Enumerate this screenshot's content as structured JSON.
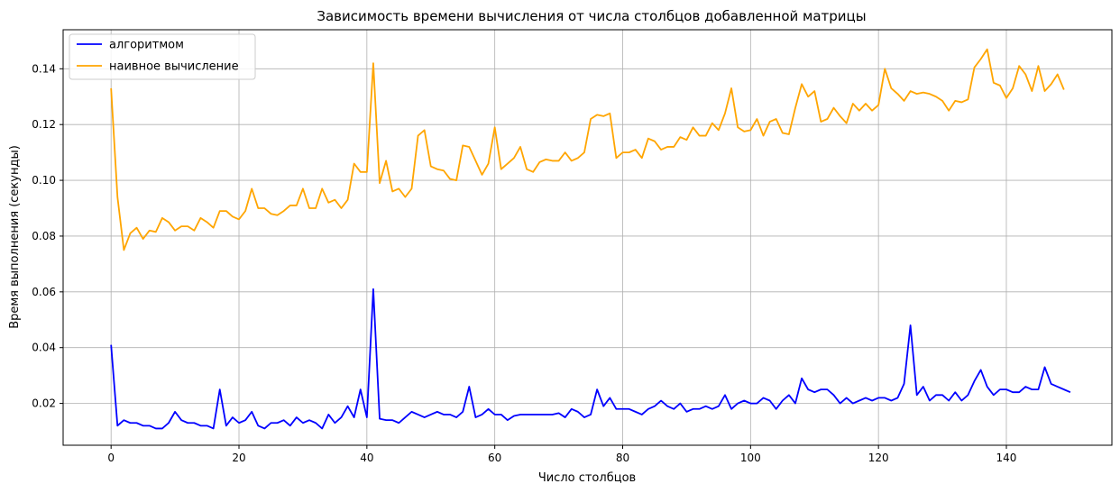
{
  "chart_data": {
    "type": "line",
    "title": "Зависимость времени вычисления от числа столбцов добавленной матрицы",
    "xlabel": "Число столбцов",
    "ylabel": "Время выполнения (секунды)",
    "xlim": [
      -7.5,
      156.5
    ],
    "ylim": [
      0.005,
      0.154
    ],
    "xticks": [
      0,
      20,
      40,
      60,
      80,
      100,
      120,
      140
    ],
    "yticks": [
      0.02,
      0.04,
      0.06,
      0.08,
      0.1,
      0.12,
      0.14
    ],
    "ytick_labels": [
      "0.02",
      "0.04",
      "0.06",
      "0.08",
      "0.10",
      "0.12",
      "0.14"
    ],
    "grid": true,
    "legend_position": "top-left",
    "series": [
      {
        "name": "алгоритмом",
        "color": "#0000ff",
        "values": [
          0.041,
          0.012,
          0.014,
          0.013,
          0.013,
          0.012,
          0.012,
          0.011,
          0.011,
          0.013,
          0.017,
          0.014,
          0.013,
          0.013,
          0.012,
          0.012,
          0.011,
          0.025,
          0.012,
          0.015,
          0.013,
          0.014,
          0.017,
          0.012,
          0.011,
          0.013,
          0.013,
          0.014,
          0.012,
          0.015,
          0.013,
          0.014,
          0.013,
          0.011,
          0.016,
          0.013,
          0.015,
          0.019,
          0.015,
          0.025,
          0.015,
          0.061,
          0.0145,
          0.014,
          0.014,
          0.013,
          0.015,
          0.017,
          0.016,
          0.015,
          0.016,
          0.017,
          0.016,
          0.016,
          0.015,
          0.017,
          0.026,
          0.015,
          0.016,
          0.018,
          0.016,
          0.016,
          0.014,
          0.0155,
          0.016,
          0.016,
          0.016,
          0.016,
          0.016,
          0.016,
          0.0165,
          0.015,
          0.018,
          0.017,
          0.015,
          0.016,
          0.025,
          0.019,
          0.022,
          0.018,
          0.018,
          0.018,
          0.017,
          0.016,
          0.018,
          0.019,
          0.021,
          0.019,
          0.018,
          0.02,
          0.017,
          0.018,
          0.018,
          0.019,
          0.018,
          0.019,
          0.023,
          0.018,
          0.02,
          0.021,
          0.02,
          0.02,
          0.022,
          0.021,
          0.018,
          0.021,
          0.023,
          0.02,
          0.029,
          0.025,
          0.024,
          0.025,
          0.025,
          0.023,
          0.02,
          0.022,
          0.02,
          0.021,
          0.022,
          0.021,
          0.022,
          0.022,
          0.021,
          0.022,
          0.027,
          0.048,
          0.023,
          0.026,
          0.021,
          0.023,
          0.023,
          0.021,
          0.024,
          0.021,
          0.023,
          0.028,
          0.032,
          0.026,
          0.023,
          0.025,
          0.025,
          0.024,
          0.024,
          0.026,
          0.025,
          0.025,
          0.033,
          0.027,
          0.026,
          0.025,
          0.024
        ]
      },
      {
        "name": "наивное вычисление",
        "color": "#ffa500",
        "values": [
          0.133,
          0.094,
          0.075,
          0.081,
          0.083,
          0.079,
          0.082,
          0.0815,
          0.0865,
          0.085,
          0.082,
          0.0835,
          0.0835,
          0.082,
          0.0865,
          0.085,
          0.083,
          0.089,
          0.089,
          0.087,
          0.086,
          0.089,
          0.097,
          0.09,
          0.09,
          0.088,
          0.0875,
          0.089,
          0.091,
          0.091,
          0.097,
          0.09,
          0.09,
          0.097,
          0.092,
          0.093,
          0.09,
          0.093,
          0.106,
          0.103,
          0.103,
          0.142,
          0.099,
          0.107,
          0.096,
          0.097,
          0.094,
          0.097,
          0.116,
          0.118,
          0.105,
          0.104,
          0.1035,
          0.1005,
          0.1,
          0.1125,
          0.112,
          0.107,
          0.102,
          0.106,
          0.119,
          0.104,
          0.106,
          0.108,
          0.112,
          0.104,
          0.103,
          0.1065,
          0.1075,
          0.107,
          0.107,
          0.11,
          0.107,
          0.108,
          0.11,
          0.122,
          0.1235,
          0.123,
          0.124,
          0.108,
          0.11,
          0.11,
          0.111,
          0.108,
          0.115,
          0.114,
          0.111,
          0.112,
          0.112,
          0.1155,
          0.1145,
          0.119,
          0.116,
          0.116,
          0.1205,
          0.118,
          0.124,
          0.133,
          0.119,
          0.1175,
          0.118,
          0.122,
          0.116,
          0.121,
          0.122,
          0.117,
          0.1165,
          0.126,
          0.1345,
          0.13,
          0.132,
          0.121,
          0.122,
          0.126,
          0.123,
          0.1205,
          0.1275,
          0.125,
          0.1275,
          0.125,
          0.127,
          0.14,
          0.133,
          0.131,
          0.1285,
          0.132,
          0.131,
          0.1315,
          0.131,
          0.13,
          0.1285,
          0.125,
          0.1285,
          0.128,
          0.129,
          0.1405,
          0.1435,
          0.147,
          0.135,
          0.134,
          0.1295,
          0.133,
          0.141,
          0.138,
          0.132,
          0.141,
          0.132,
          0.1345,
          0.138,
          0.1325
        ]
      }
    ]
  }
}
